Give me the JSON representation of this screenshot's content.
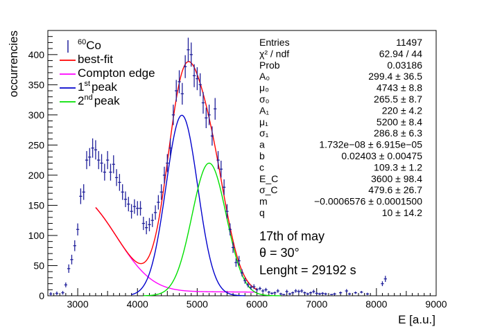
{
  "chart_data": {
    "type": "scatter",
    "xlabel": "E [a.u.]",
    "ylabel": "occurrencies",
    "xlim": [
      2500,
      9000
    ],
    "ylim": [
      0,
      440
    ],
    "x_ticks": [
      3000,
      4000,
      5000,
      6000,
      7000,
      8000,
      9000
    ],
    "y_ticks": [
      0,
      50,
      100,
      150,
      200,
      250,
      300,
      350,
      400
    ],
    "legend": {
      "placement": "top-left",
      "entries": [
        {
          "key": "data",
          "label_sup": "60",
          "label": "Co",
          "color": "#1f1f9a"
        },
        {
          "key": "fit",
          "label": "best-fit",
          "color": "#ff0000"
        },
        {
          "key": "compton",
          "label": "Compton edge",
          "color": "#ff00ff"
        },
        {
          "key": "peak1",
          "label_pre": "1",
          "label_sup": "st",
          "label": "peak",
          "color": "#0000cc"
        },
        {
          "key": "peak2",
          "label_pre": "2",
          "label_sup": "nd",
          "label": "peak",
          "color": "#00e000"
        }
      ]
    },
    "stats": [
      {
        "name": "Entries",
        "value": "11497"
      },
      {
        "name": "χ² / ndf",
        "value": "62.94 / 44"
      },
      {
        "name": "Prob",
        "value": "0.03186"
      },
      {
        "name": "A₀",
        "value": "299.4 ± 36.5"
      },
      {
        "name": "μ₀",
        "value": "4743 ± 8.8"
      },
      {
        "name": "σ₀",
        "value": "265.5 ± 8.7"
      },
      {
        "name": "A₁",
        "value": "220 ± 4.2"
      },
      {
        "name": "μ₁",
        "value": "5200 ± 8.4"
      },
      {
        "name": "σ₁",
        "value": "286.8 ± 6.3"
      },
      {
        "name": "a",
        "value": "1.732e−08 ± 6.915e−05"
      },
      {
        "name": "b",
        "value": "0.02403 ± 0.00475"
      },
      {
        "name": "c",
        "value": "109.3 ± 1.2"
      },
      {
        "name": "E_C",
        "value": "3600 ± 98.4"
      },
      {
        "name": "σ_C",
        "value": "479.6 ± 26.7"
      },
      {
        "name": "m",
        "value": "−0.0006576 ± 0.0001500"
      },
      {
        "name": "q",
        "value": "10 ± 14.2"
      }
    ],
    "annotations": [
      "17th of may",
      "θ = 30°",
      "Lenght =  29192 s"
    ],
    "points": [
      [
        2550,
        3,
        3
      ],
      [
        2650,
        4,
        3
      ],
      [
        2750,
        5,
        3
      ],
      [
        2800,
        18,
        4
      ],
      [
        2850,
        45,
        7
      ],
      [
        2900,
        60,
        8
      ],
      [
        2950,
        83,
        9
      ],
      [
        3000,
        110,
        10
      ],
      [
        3050,
        165,
        13
      ],
      [
        3100,
        172,
        13
      ],
      [
        3150,
        225,
        15
      ],
      [
        3200,
        230,
        15
      ],
      [
        3250,
        245,
        16
      ],
      [
        3300,
        242,
        16
      ],
      [
        3350,
        225,
        15
      ],
      [
        3400,
        220,
        15
      ],
      [
        3450,
        205,
        14
      ],
      [
        3500,
        225,
        15
      ],
      [
        3550,
        205,
        14
      ],
      [
        3600,
        218,
        15
      ],
      [
        3650,
        196,
        14
      ],
      [
        3700,
        188,
        14
      ],
      [
        3750,
        172,
        13
      ],
      [
        3800,
        160,
        13
      ],
      [
        3850,
        152,
        12
      ],
      [
        3900,
        140,
        12
      ],
      [
        3950,
        148,
        12
      ],
      [
        4000,
        145,
        12
      ],
      [
        4050,
        145,
        12
      ],
      [
        4100,
        120,
        11
      ],
      [
        4150,
        113,
        11
      ],
      [
        4200,
        118,
        11
      ],
      [
        4250,
        125,
        11
      ],
      [
        4300,
        138,
        12
      ],
      [
        4350,
        155,
        12
      ],
      [
        4400,
        172,
        13
      ],
      [
        4450,
        200,
        14
      ],
      [
        4500,
        220,
        15
      ],
      [
        4550,
        245,
        16
      ],
      [
        4600,
        300,
        17
      ],
      [
        4650,
        340,
        18
      ],
      [
        4700,
        355,
        19
      ],
      [
        4750,
        335,
        18
      ],
      [
        4800,
        380,
        19
      ],
      [
        4850,
        408,
        20
      ],
      [
        4900,
        400,
        20
      ],
      [
        4950,
        365,
        19
      ],
      [
        5000,
        360,
        19
      ],
      [
        5050,
        350,
        19
      ],
      [
        5100,
        320,
        18
      ],
      [
        5150,
        295,
        17
      ],
      [
        5200,
        300,
        17
      ],
      [
        5250,
        265,
        16
      ],
      [
        5300,
        310,
        18
      ],
      [
        5350,
        225,
        15
      ],
      [
        5400,
        210,
        14
      ],
      [
        5450,
        180,
        13
      ],
      [
        5500,
        140,
        12
      ],
      [
        5550,
        110,
        10
      ],
      [
        5600,
        80,
        9
      ],
      [
        5650,
        55,
        7
      ],
      [
        5700,
        58,
        8
      ],
      [
        5750,
        38,
        6
      ],
      [
        5800,
        25,
        5
      ],
      [
        5850,
        18,
        4
      ],
      [
        5900,
        14,
        4
      ],
      [
        5950,
        15,
        4
      ],
      [
        6000,
        10,
        3
      ],
      [
        6050,
        12,
        3
      ],
      [
        6100,
        8,
        3
      ],
      [
        6150,
        10,
        3
      ],
      [
        6200,
        6,
        2
      ],
      [
        6250,
        4,
        2
      ],
      [
        6300,
        5,
        2
      ],
      [
        6350,
        8,
        3
      ],
      [
        6400,
        3,
        2
      ],
      [
        6450,
        2,
        1
      ],
      [
        6500,
        7,
        3
      ],
      [
        6550,
        3,
        2
      ],
      [
        6600,
        5,
        2
      ],
      [
        6650,
        8,
        3
      ],
      [
        6700,
        7,
        3
      ],
      [
        6750,
        8,
        3
      ],
      [
        6800,
        5,
        2
      ],
      [
        6850,
        3,
        2
      ],
      [
        6900,
        5,
        2
      ],
      [
        6950,
        7,
        3
      ],
      [
        7000,
        4,
        2
      ],
      [
        7050,
        3,
        2
      ],
      [
        7100,
        4,
        2
      ],
      [
        7150,
        3,
        2
      ],
      [
        7250,
        2,
        1
      ],
      [
        7300,
        3,
        2
      ],
      [
        7400,
        5,
        2
      ],
      [
        7500,
        8,
        3
      ],
      [
        7550,
        3,
        2
      ],
      [
        7650,
        5,
        2
      ],
      [
        7750,
        6,
        2
      ],
      [
        7850,
        3,
        2
      ],
      [
        8100,
        20,
        4
      ],
      [
        8150,
        28,
        5
      ]
    ],
    "fit_params": {
      "A0": 299.4,
      "mu0": 4743,
      "sigma0": 265.5,
      "A1": 220,
      "mu1": 5200,
      "sigma1": 286.8,
      "a": 1.732e-08,
      "b": 0.02403,
      "c": 109.3,
      "Ec": 3600,
      "sigmaC": 479.6,
      "m": -0.0006576,
      "q": 10,
      "fit_range": [
        3300,
        6000
      ],
      "compton_range": [
        3300,
        6000
      ]
    }
  }
}
